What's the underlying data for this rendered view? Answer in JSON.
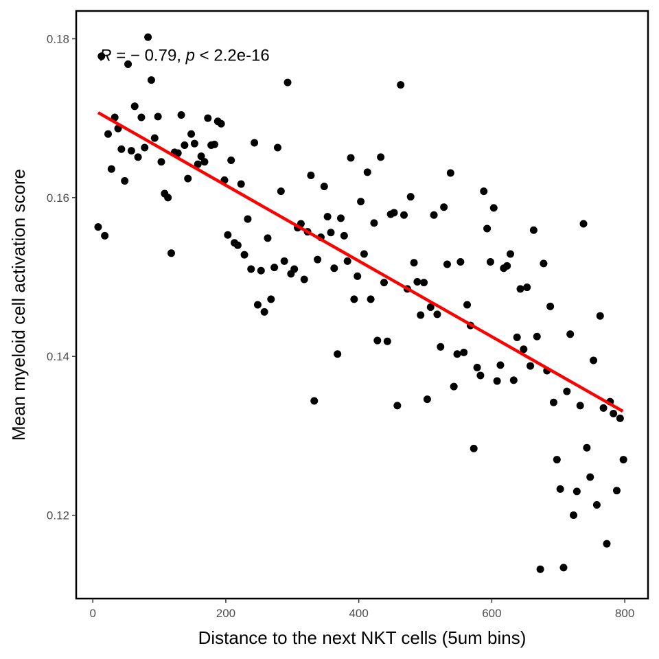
{
  "chart_data": {
    "type": "scatter",
    "xlabel": "Distance to the next NKT cells (5um bins)",
    "ylabel": "Mean myeloid cell activation score",
    "xlim": [
      -25,
      835
    ],
    "ylim": [
      0.1095,
      0.1835
    ],
    "x_ticks": [
      0,
      200,
      400,
      600,
      800
    ],
    "x_tick_labels": [
      "0",
      "200",
      "400",
      "600",
      "800"
    ],
    "y_ticks": [
      0.12,
      0.14,
      0.16,
      0.18
    ],
    "y_tick_labels": [
      "0.12",
      "0.14",
      "0.16",
      "0.18"
    ],
    "grid": false,
    "annotation": {
      "r_symbol": "R",
      "r_value": " = − 0.79, ",
      "p_symbol": "p",
      "p_value": " < 2.2e-16",
      "x": 0,
      "y": 0.178
    },
    "trend_line": {
      "color": "#ff0000",
      "x": [
        8,
        797
      ],
      "y": [
        0.1707,
        0.1331
      ]
    },
    "point_color": "#000000",
    "points": [
      [
        8,
        0.1563
      ],
      [
        13,
        0.1778
      ],
      [
        18,
        0.1552
      ],
      [
        23,
        0.168
      ],
      [
        28,
        0.1636
      ],
      [
        33,
        0.1701
      ],
      [
        38,
        0.1687
      ],
      [
        43,
        0.1661
      ],
      [
        48,
        0.1621
      ],
      [
        53,
        0.1768
      ],
      [
        58,
        0.1659
      ],
      [
        63,
        0.1715
      ],
      [
        68,
        0.1651
      ],
      [
        73,
        0.1701
      ],
      [
        78,
        0.1663
      ],
      [
        83,
        0.1802
      ],
      [
        88,
        0.1748
      ],
      [
        93,
        0.1675
      ],
      [
        98,
        0.1702
      ],
      [
        103,
        0.1645
      ],
      [
        108,
        0.1605
      ],
      [
        113,
        0.16
      ],
      [
        118,
        0.153
      ],
      [
        123,
        0.1657
      ],
      [
        128,
        0.1656
      ],
      [
        133,
        0.1704
      ],
      [
        138,
        0.1666
      ],
      [
        143,
        0.1624
      ],
      [
        148,
        0.168
      ],
      [
        153,
        0.1668
      ],
      [
        158,
        0.1642
      ],
      [
        163,
        0.1652
      ],
      [
        168,
        0.1645
      ],
      [
        173,
        0.17
      ],
      [
        178,
        0.1666
      ],
      [
        183,
        0.1667
      ],
      [
        188,
        0.1696
      ],
      [
        193,
        0.1693
      ],
      [
        198,
        0.1622
      ],
      [
        203,
        0.1553
      ],
      [
        208,
        0.1647
      ],
      [
        213,
        0.1543
      ],
      [
        218,
        0.154
      ],
      [
        223,
        0.1617
      ],
      [
        228,
        0.1528
      ],
      [
        233,
        0.1573
      ],
      [
        238,
        0.151
      ],
      [
        243,
        0.1669
      ],
      [
        248,
        0.1465
      ],
      [
        253,
        0.1508
      ],
      [
        258,
        0.1456
      ],
      [
        263,
        0.1549
      ],
      [
        268,
        0.1472
      ],
      [
        273,
        0.1512
      ],
      [
        278,
        0.1663
      ],
      [
        283,
        0.1608
      ],
      [
        288,
        0.152
      ],
      [
        293,
        0.1745
      ],
      [
        298,
        0.1504
      ],
      [
        303,
        0.151
      ],
      [
        308,
        0.1562
      ],
      [
        313,
        0.1567
      ],
      [
        318,
        0.1497
      ],
      [
        323,
        0.1557
      ],
      [
        328,
        0.1628
      ],
      [
        333,
        0.1344
      ],
      [
        338,
        0.1522
      ],
      [
        343,
        0.155
      ],
      [
        348,
        0.1614
      ],
      [
        353,
        0.1576
      ],
      [
        358,
        0.1556
      ],
      [
        363,
        0.1511
      ],
      [
        368,
        0.1403
      ],
      [
        373,
        0.1574
      ],
      [
        378,
        0.1552
      ],
      [
        383,
        0.152
      ],
      [
        388,
        0.165
      ],
      [
        393,
        0.1472
      ],
      [
        398,
        0.1501
      ],
      [
        403,
        0.1595
      ],
      [
        408,
        0.1529
      ],
      [
        413,
        0.1632
      ],
      [
        418,
        0.1472
      ],
      [
        423,
        0.1568
      ],
      [
        428,
        0.142
      ],
      [
        433,
        0.1651
      ],
      [
        438,
        0.1493
      ],
      [
        443,
        0.1419
      ],
      [
        448,
        0.1579
      ],
      [
        453,
        0.1581
      ],
      [
        458,
        0.1338
      ],
      [
        463,
        0.1742
      ],
      [
        468,
        0.1578
      ],
      [
        473,
        0.1485
      ],
      [
        478,
        0.1601
      ],
      [
        483,
        0.1518
      ],
      [
        488,
        0.1494
      ],
      [
        493,
        0.1452
      ],
      [
        498,
        0.1493
      ],
      [
        503,
        0.1346
      ],
      [
        508,
        0.1462
      ],
      [
        513,
        0.1578
      ],
      [
        518,
        0.1453
      ],
      [
        523,
        0.1412
      ],
      [
        528,
        0.1588
      ],
      [
        533,
        0.1516
      ],
      [
        538,
        0.1631
      ],
      [
        543,
        0.1362
      ],
      [
        548,
        0.1403
      ],
      [
        553,
        0.1519
      ],
      [
        558,
        0.1405
      ],
      [
        563,
        0.1465
      ],
      [
        568,
        0.1439
      ],
      [
        573,
        0.1284
      ],
      [
        578,
        0.1386
      ],
      [
        583,
        0.1376
      ],
      [
        588,
        0.1608
      ],
      [
        593,
        0.1561
      ],
      [
        598,
        0.1519
      ],
      [
        603,
        0.1587
      ],
      [
        608,
        0.1369
      ],
      [
        613,
        0.1389
      ],
      [
        618,
        0.1511
      ],
      [
        623,
        0.1514
      ],
      [
        628,
        0.1529
      ],
      [
        633,
        0.137
      ],
      [
        638,
        0.1424
      ],
      [
        643,
        0.1485
      ],
      [
        648,
        0.1409
      ],
      [
        653,
        0.1487
      ],
      [
        658,
        0.1388
      ],
      [
        663,
        0.1559
      ],
      [
        668,
        0.1425
      ],
      [
        673,
        0.1132
      ],
      [
        678,
        0.1517
      ],
      [
        683,
        0.1382
      ],
      [
        688,
        0.1463
      ],
      [
        693,
        0.1342
      ],
      [
        698,
        0.127
      ],
      [
        703,
        0.1233
      ],
      [
        708,
        0.1134
      ],
      [
        713,
        0.1356
      ],
      [
        718,
        0.1428
      ],
      [
        723,
        0.12
      ],
      [
        728,
        0.123
      ],
      [
        733,
        0.1338
      ],
      [
        738,
        0.1567
      ],
      [
        743,
        0.1285
      ],
      [
        748,
        0.1248
      ],
      [
        753,
        0.1395
      ],
      [
        758,
        0.1213
      ],
      [
        763,
        0.1451
      ],
      [
        768,
        0.1335
      ],
      [
        773,
        0.1164
      ],
      [
        778,
        0.1343
      ],
      [
        783,
        0.1328
      ],
      [
        788,
        0.1231
      ],
      [
        793,
        0.1322
      ],
      [
        798,
        0.127
      ]
    ]
  }
}
